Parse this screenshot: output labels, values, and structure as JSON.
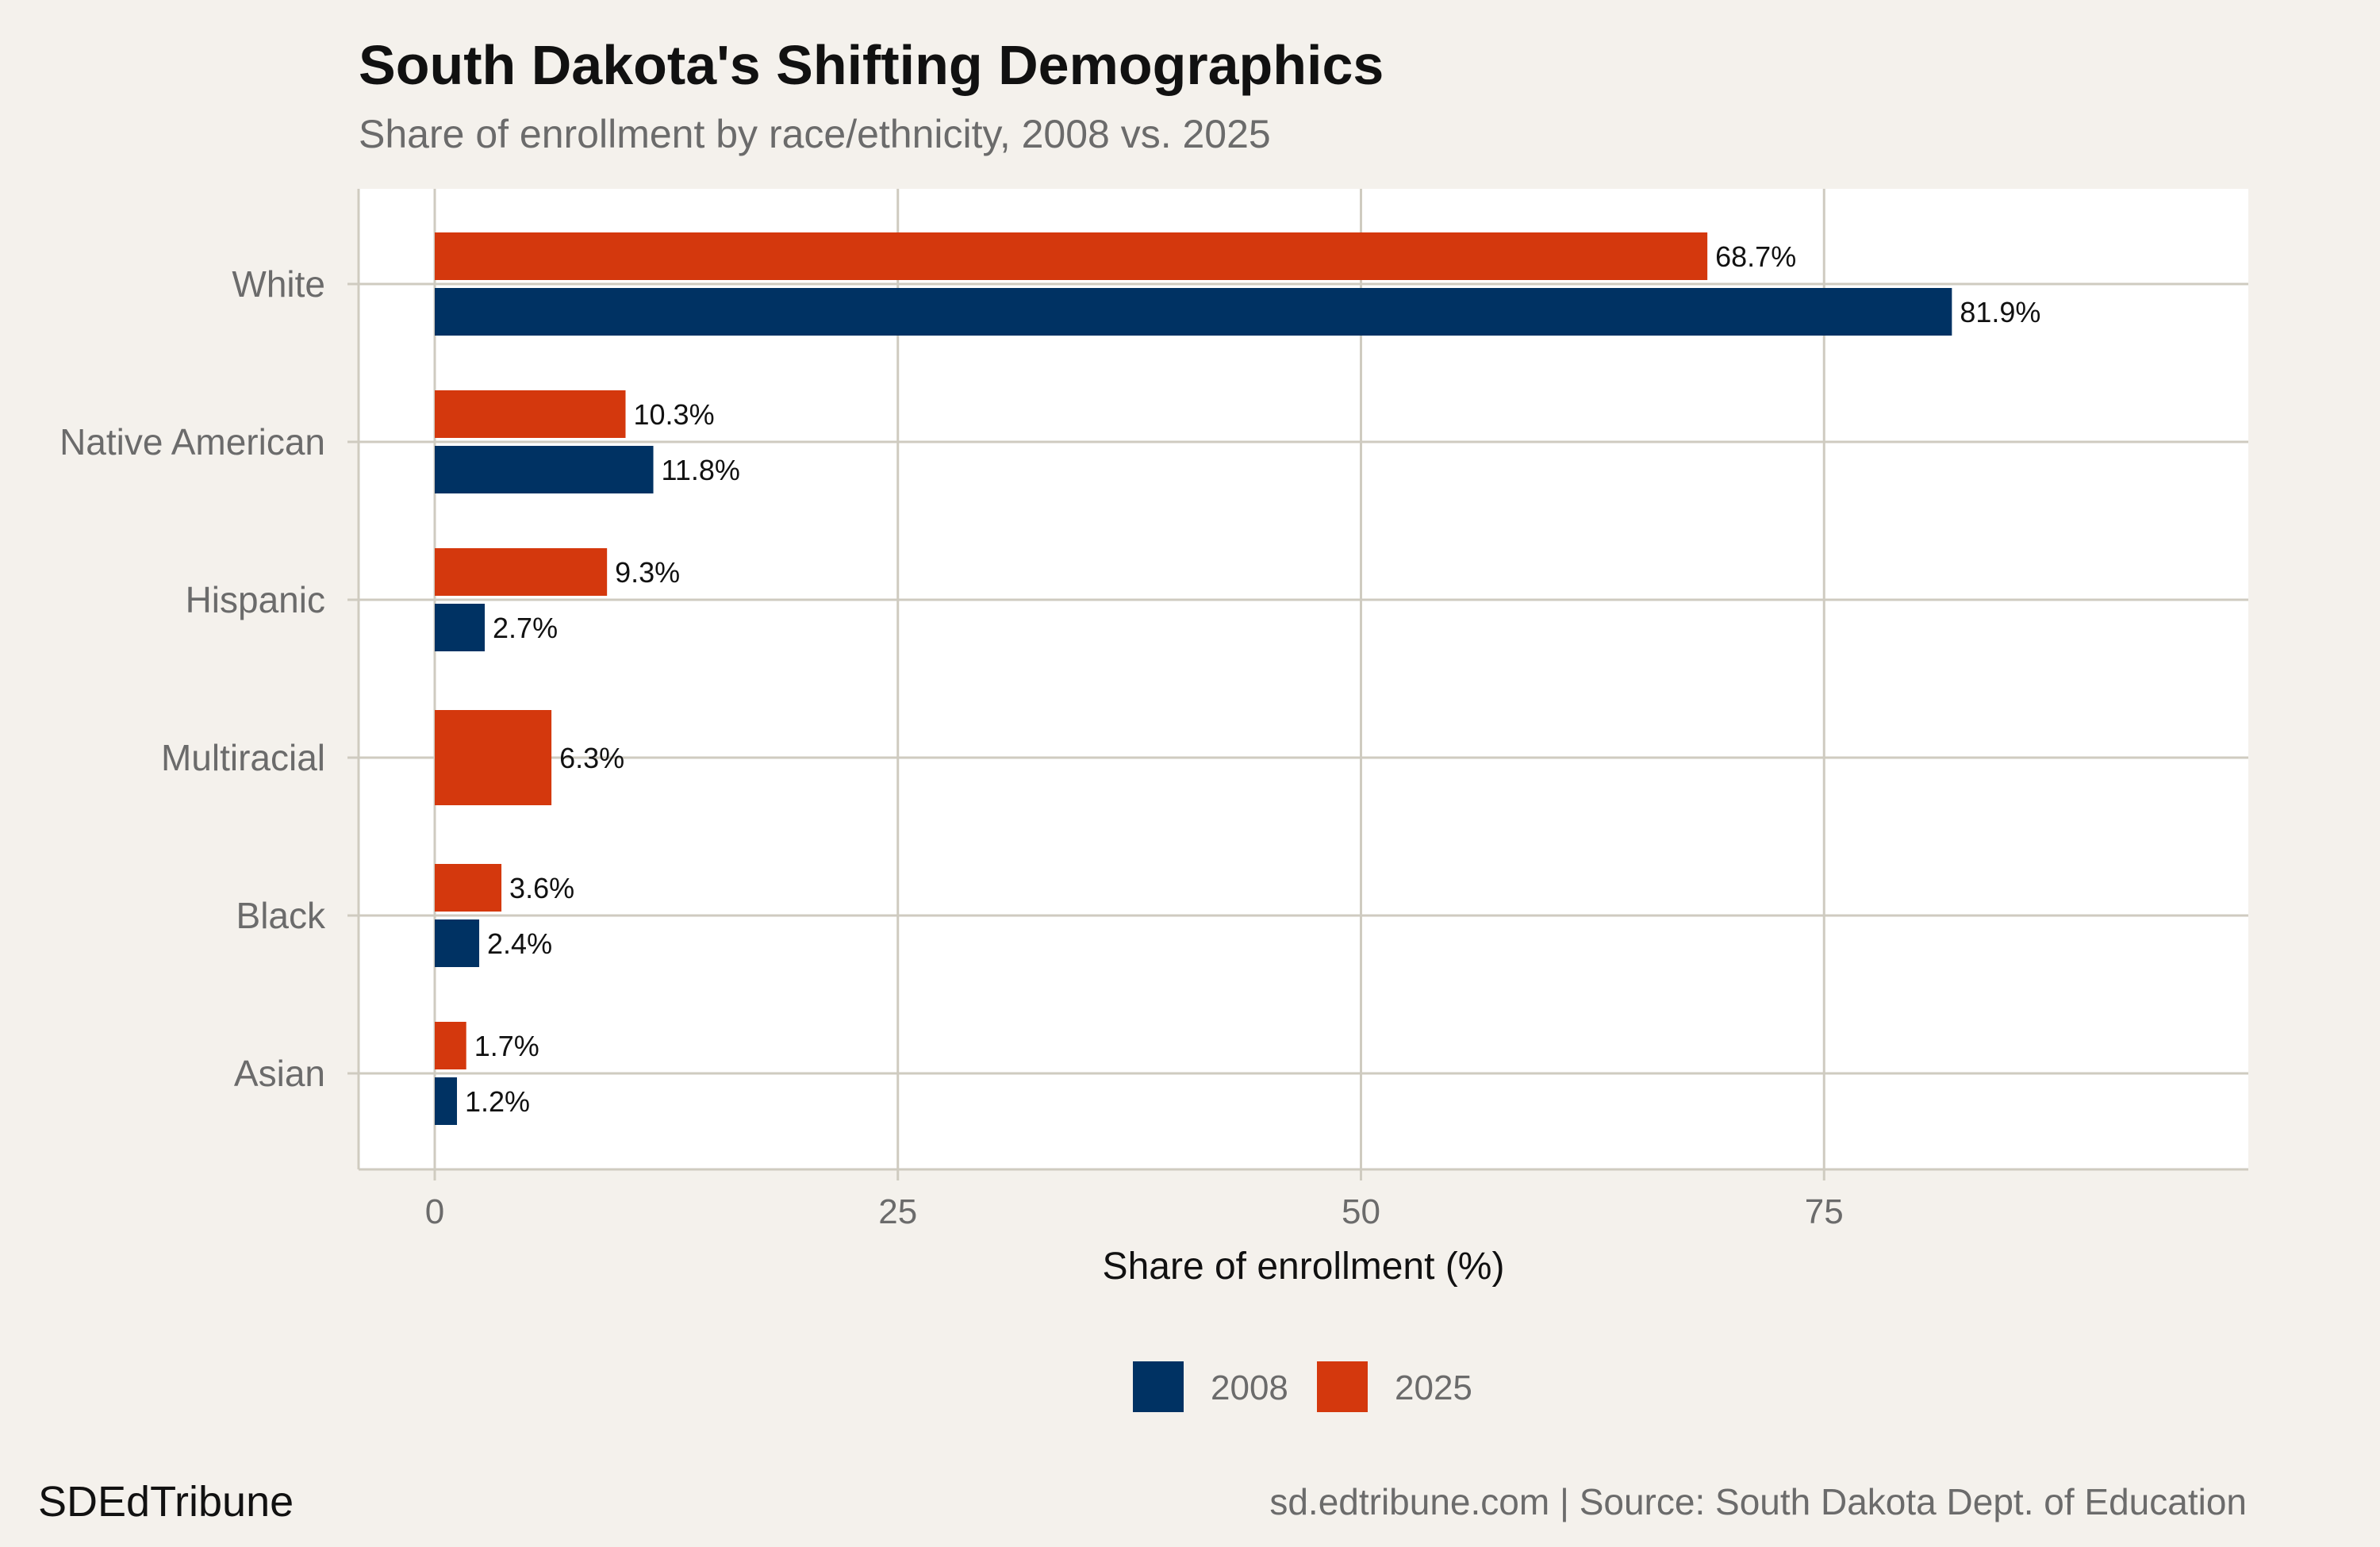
{
  "header": {
    "title": "South Dakota's Shifting Demographics",
    "subtitle": "Share of enrollment by race/ethnicity, 2008 vs. 2025"
  },
  "footer": {
    "brand": "SDEdTribune",
    "source": "sd.edtribune.com | Source: South Dakota Dept. of Education"
  },
  "colors": {
    "series_2008": "#003263",
    "series_2025": "#d4380d",
    "panel_background": "#ffffff",
    "page_background": "#f4f1ec",
    "grid": "#cfcbc0"
  },
  "chart_data": {
    "type": "bar",
    "orientation": "horizontal",
    "title": "South Dakota's Shifting Demographics",
    "subtitle": "Share of enrollment by race/ethnicity, 2008 vs. 2025",
    "xlabel": "Share of enrollment (%)",
    "ylabel": "",
    "xlim": [
      -4,
      98
    ],
    "xticks": [
      0,
      25,
      50,
      75
    ],
    "grid": true,
    "legend_position": "bottom",
    "categories": [
      "White",
      "Native American",
      "Hispanic",
      "Multiracial",
      "Black",
      "Asian"
    ],
    "series": [
      {
        "name": "2008",
        "color": "#003263",
        "values": [
          81.9,
          11.8,
          2.7,
          null,
          2.4,
          1.2
        ],
        "labels": [
          "81.9%",
          "11.8%",
          "2.7%",
          "",
          "2.4%",
          "1.2%"
        ]
      },
      {
        "name": "2025",
        "color": "#d4380d",
        "values": [
          68.7,
          10.3,
          9.3,
          6.3,
          3.6,
          1.7
        ],
        "labels": [
          "68.7%",
          "10.3%",
          "9.3%",
          "6.3%",
          "3.6%",
          "1.7%"
        ]
      }
    ]
  }
}
